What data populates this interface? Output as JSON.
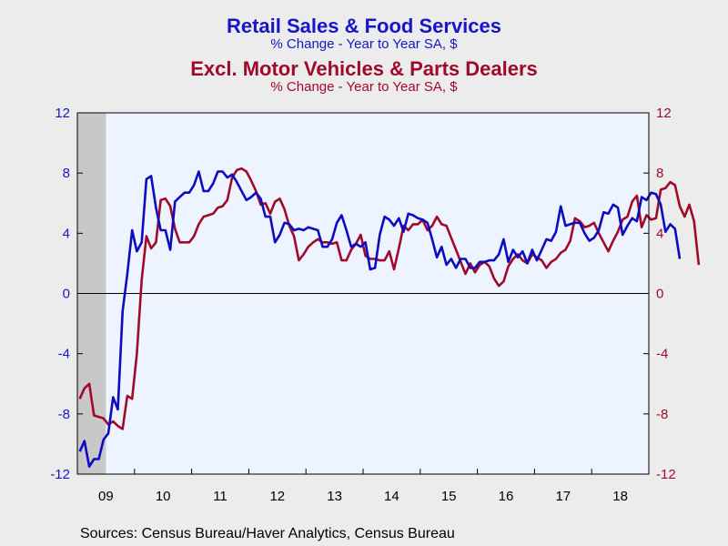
{
  "title": {
    "line1": "Retail Sales & Food Services",
    "line2": "% Change - Year to Year     SA, $",
    "line3": "Excl. Motor Vehicles & Parts Dealers",
    "line4": "% Change - Year to Year     SA, $"
  },
  "source": "Sources:  Census Bureau/Haver Analytics, Census Bureau",
  "colors": {
    "series1": "#0b0bc0",
    "series2": "#a00a2a",
    "plot_bg": "#eef4ff",
    "recession": "#c8c8c8",
    "left_axis_labels": "#1616c8",
    "right_axis_labels": "#a00a2a"
  },
  "chart_data": {
    "type": "line",
    "x_start": "2009-01",
    "x_end": "2018-12",
    "x_ticks": [
      "09",
      "10",
      "11",
      "12",
      "13",
      "14",
      "15",
      "16",
      "17",
      "18"
    ],
    "y_ticks": [
      "-12",
      "-8",
      "-4",
      "0",
      "4",
      "8",
      "12"
    ],
    "ylim": [
      -12,
      12
    ],
    "grid": false,
    "recession_shading": [
      "2009-01",
      "2009-06"
    ],
    "series": [
      {
        "name": "Retail Sales & Food Services",
        "axis": "left",
        "values": [
          -10.5,
          -9.8,
          -11.5,
          -11.0,
          -11.0,
          -9.7,
          -9.3,
          -6.9,
          -7.7,
          -1.2,
          1.3,
          4.2,
          2.8,
          3.4,
          7.6,
          7.8,
          5.7,
          4.2,
          4.2,
          2.9,
          6.1,
          6.4,
          6.7,
          6.7,
          7.2,
          8.1,
          6.8,
          6.8,
          7.3,
          8.1,
          8.1,
          7.7,
          7.9,
          7.4,
          6.8,
          6.2,
          6.4,
          6.7,
          6.3,
          5.1,
          5.1,
          3.4,
          3.9,
          4.7,
          4.6,
          4.2,
          4.3,
          4.2,
          4.4,
          4.3,
          4.2,
          3.1,
          3.1,
          3.6,
          4.7,
          5.2,
          4.2,
          3.1,
          3.3,
          3.1,
          3.4,
          1.6,
          1.7,
          3.9,
          5.1,
          4.9,
          4.5,
          5.0,
          4.1,
          5.3,
          5.2,
          5.0,
          4.9,
          4.7,
          3.6,
          2.4,
          3.1,
          1.9,
          2.3,
          1.7,
          2.3,
          2.3,
          1.7,
          1.7,
          2.1,
          2.1,
          2.2,
          2.2,
          2.6,
          3.6,
          2.1,
          2.9,
          2.4,
          2.8,
          2.0,
          2.9,
          2.2,
          2.9,
          3.6,
          3.5,
          4.1,
          5.8,
          4.5,
          4.6,
          4.7,
          4.7,
          4.0,
          3.5,
          3.7,
          4.2,
          5.4,
          5.3,
          5.9,
          5.7,
          3.9,
          4.5,
          5.0,
          4.8,
          6.4,
          6.2,
          6.7,
          6.6,
          5.9,
          4.1,
          4.6,
          4.3,
          2.3
        ]
      },
      {
        "name": "Excl. Motor Vehicles & Parts Dealers",
        "axis": "right",
        "values": [
          -7.0,
          -6.3,
          -6.0,
          -8.1,
          -8.2,
          -8.3,
          -8.7,
          -8.5,
          -8.8,
          -9.0,
          -6.8,
          -7.0,
          -4.0,
          0.9,
          3.8,
          3.0,
          3.4,
          6.2,
          6.3,
          5.8,
          4.3,
          3.4,
          3.4,
          3.4,
          3.8,
          4.6,
          5.1,
          5.2,
          5.3,
          5.7,
          5.8,
          6.2,
          7.7,
          8.2,
          8.3,
          8.1,
          7.5,
          6.8,
          5.9,
          6.0,
          5.3,
          6.1,
          6.3,
          5.6,
          4.5,
          3.8,
          2.2,
          2.6,
          3.1,
          3.4,
          3.6,
          3.4,
          3.4,
          3.3,
          3.4,
          2.2,
          2.2,
          2.9,
          3.3,
          3.9,
          2.5,
          2.3,
          2.3,
          2.2,
          2.2,
          2.8,
          1.6,
          3.0,
          4.5,
          4.2,
          4.6,
          4.6,
          4.9,
          4.2,
          4.5,
          5.1,
          4.6,
          4.5,
          3.7,
          2.9,
          2.1,
          1.3,
          2.0,
          1.4,
          1.9,
          2.1,
          1.8,
          1.0,
          0.5,
          0.8,
          1.8,
          2.3,
          2.6,
          2.2,
          2.0,
          2.6,
          2.4,
          2.2,
          1.7,
          2.1,
          2.3,
          2.7,
          2.9,
          3.5,
          5.0,
          4.8,
          4.4,
          4.5,
          4.7,
          4.0,
          3.4,
          2.8,
          3.5,
          4.1,
          4.9,
          5.1,
          6.1,
          6.5,
          4.4,
          5.2,
          4.9,
          5.0,
          6.9,
          7.0,
          7.4,
          7.2,
          5.8,
          5.1,
          5.9,
          4.8,
          1.9
        ]
      }
    ]
  }
}
